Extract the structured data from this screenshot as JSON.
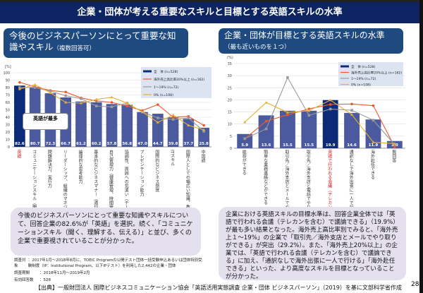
{
  "header": {
    "title": "企業・団体が考える重要なスキルと目標とする英語スキルの水準"
  },
  "left": {
    "title": "今後のビジネスパーソンにとって重要な知識やスキル",
    "subtitle": "（複数回答可）",
    "callout": "英語が最多",
    "note": "今後のビジネスパーソンにとって重要な知識やスキルについて、回答企業の82.6%が「英語」を選択。続く、「コミュニケーションスキル（聞く、理解する、伝える）」と並び、多くの企業で重要視されていることが分かった。"
  },
  "right": {
    "title": "企業・団体が目標とする英語スキルの水準",
    "subtitle": "（最も近いものを１つ）",
    "note": "企業における英語スキルの目標水準は、回答企業全体では「英語で行われる会議（テレカンを含む）で議論できる」（19.9%）が最も多い結果となった。海外売上高比率別でみると、「海外売上１～19%」の企業で「取引先／海外支店とメールでやり取りができる」が突出（29.2%）。また、「海外売上20%以上」の企業では、「英語で行われる会議（テレカンを含む）で議論できる」に加え、「通訳なしで海外出張に一人で行ける」「海外赴任できる」といった、より高度なスキルを目標となっていることが分かった。"
  },
  "footnotes": [
    {
      "label": "調査対象",
      "value": "：2017年1月～2018年8月に、TOEIC Programの公開テスト団体一括受験申込あるいは団体特別受験制度（IP：Institutional Program、以下IPテスト）を利用した2,442の企業・団体"
    },
    {
      "label": "調査期間",
      "value": "：2018年11月～2019年2月"
    },
    {
      "label": "有効回答数",
      "value": "：528"
    }
  ],
  "source": "【出典】一般財団法人 国際ビジネスコミュニケーション協会「英語活用実態調査 企業・団体 ビジネスパーソン」（2019）を基に文部科学省作成",
  "page_number": "28",
  "colors": {
    "bar": "#4b5a9e",
    "highlight_bar": "#0d2a78",
    "red": "#f0582a",
    "gray": "#999999",
    "yellow": "#e8b030"
  },
  "chart_data": [
    {
      "type": "bar",
      "ylabel": "[%]",
      "ylim": [
        0,
        100
      ],
      "yticks": [
        0,
        10,
        20,
        30,
        40,
        50,
        60,
        70,
        80,
        90,
        100
      ],
      "grid": true,
      "legend": "top-right",
      "categories": [
        "英語",
        "コミュニケーションスキル（聞く、理解する、伝える）",
        "問題解決力、実行力",
        "リーダーシップ、組織のマネジメント能力",
        "論理的な思考能力",
        "基本的なビジネスマナー（適切な言葉遣い、立居振舞）",
        "自己管理力（健康管理、時間管理）",
        "協調性、周囲への気遣い（チームワーク）",
        "プレゼンテーション能力",
        "国際的なビジネス感覚",
        "ITスキル",
        "国際人としての幅広い知識、教養",
        "中国語"
      ],
      "series": [
        {
          "name": "全　体 (n=528)",
          "kind": "bar",
          "values": [
            82.6,
            80.7,
            72.3,
            66.7,
            61.2,
            60.2,
            57.8,
            56.8,
            47.0,
            44.7,
            39.8,
            37.7,
            25.8
          ],
          "labels": [
            "82.6",
            "80.7",
            "72.3",
            "66.7",
            "61.2",
            "60.2",
            "57.8",
            "56.8",
            "47.0",
            "44.7",
            "39.8",
            "37.7",
            "25.8"
          ]
        },
        {
          "name": "海外売上高比率20%以上 (n=162)",
          "kind": "line",
          "color": "#f0582a",
          "values": [
            87,
            81,
            76,
            74,
            66,
            62,
            60,
            55,
            49,
            57,
            40,
            41,
            29
          ]
        },
        {
          "name": "1～19% (n=72)",
          "kind": "line",
          "color": "#999999",
          "values": [
            80,
            80,
            75,
            69,
            65,
            55,
            54,
            59,
            47,
            39,
            37,
            39,
            21
          ]
        },
        {
          "name": "0% (n=108)",
          "kind": "line",
          "color": "#e8b030",
          "values": [
            78,
            84,
            73,
            60,
            59,
            64,
            67,
            59,
            47,
            33,
            43,
            29,
            23
          ]
        }
      ]
    },
    {
      "type": "bar",
      "ylabel": "(%)",
      "ylim": [
        0,
        35
      ],
      "yticks": [
        0,
        5,
        10,
        15,
        20,
        25,
        30,
        35
      ],
      "grid": true,
      "legend": "top-right",
      "categories": [
        "挨拶ができる",
        "簡単な業務連絡などができる",
        "取引先／海外支店とメールでやり取りができる",
        "取引先／海外支店と電話でやり取りができる",
        "英語で行われる会議（テレカンを含む）で議論できる",
        "通訳なしで海外出張に一人で行ける",
        "海外赴任できる",
        "無回答"
      ],
      "series": [
        {
          "name": "全　体 (n=528)",
          "kind": "bar",
          "values": [
            5.9,
            13.6,
            15.5,
            15.5,
            19.9,
            14.6,
            11.9,
            3.0
          ],
          "labels": [
            "5.9",
            "13.6",
            "15.5",
            "15.5",
            "19.9",
            "14.6",
            "11.9",
            "3.0"
          ]
        },
        {
          "name": "海外売上高比率20%以上 (n=162)",
          "kind": "line",
          "color": "#f0582a",
          "values": [
            3.9,
            11.2,
            13.8,
            16.3,
            18.1,
            18.3,
            17.6,
            0.6
          ]
        },
        {
          "name": "1～19% (n=72)",
          "kind": "line",
          "color": "#999999",
          "values": [
            4.0,
            8.0,
            29.2,
            13.6,
            16.2,
            15.7,
            11.6,
            1.5
          ]
        },
        {
          "name": "0% (n=108)",
          "kind": "line",
          "color": "#e8b030",
          "values": [
            10.8,
            18.9,
            14.8,
            15.5,
            19.9,
            13.9,
            2.5,
            1.9
          ]
        }
      ]
    }
  ]
}
